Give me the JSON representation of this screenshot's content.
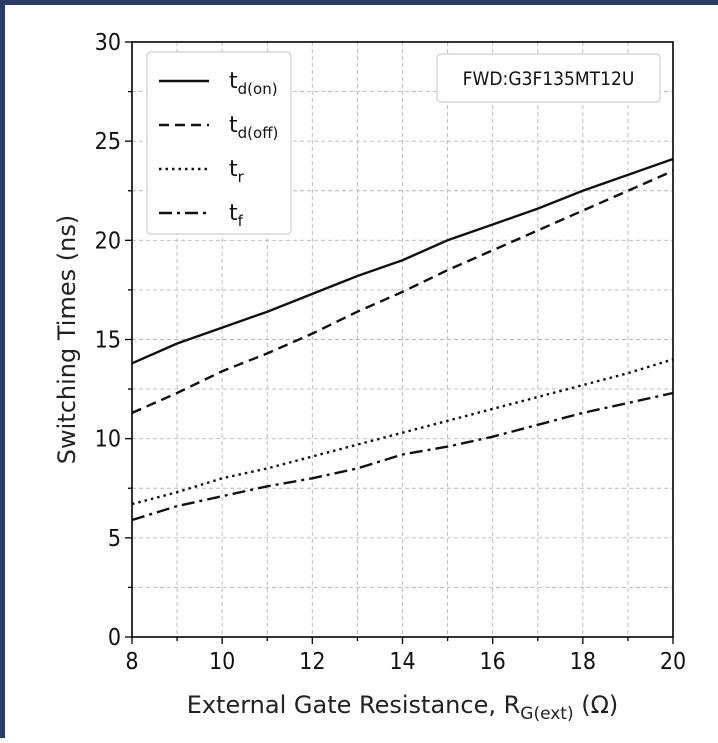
{
  "chart_data": {
    "type": "line",
    "xlabel_main": "External Gate Resistance, R",
    "xlabel_sub": "G(ext)",
    "xlabel_tail": " (Ω)",
    "ylabel": "Switching Times (ns)",
    "xlim": [
      8,
      20
    ],
    "ylim": [
      0,
      30
    ],
    "x_ticks": [
      8,
      10,
      12,
      14,
      16,
      18,
      20
    ],
    "y_ticks": [
      0,
      5,
      10,
      15,
      20,
      25,
      30
    ],
    "x_minor_step": 1,
    "y_minor_step": 2.5,
    "grid": true,
    "legend_position": "top-left",
    "annotation": "FWD:G3F135MT12U",
    "annotation_position": "top-right",
    "series": [
      {
        "name_main": "t",
        "name_sub": "d(on)",
        "style": "solid",
        "x": [
          8,
          9,
          10,
          11,
          12,
          13,
          14,
          15,
          16,
          17,
          18,
          19,
          20
        ],
        "y": [
          13.8,
          14.8,
          15.6,
          16.4,
          17.3,
          18.2,
          19.0,
          20.0,
          20.8,
          21.6,
          22.5,
          23.3,
          24.1
        ]
      },
      {
        "name_main": "t",
        "name_sub": "d(off)",
        "style": "dashed",
        "x": [
          8,
          9,
          10,
          11,
          12,
          13,
          14,
          15,
          16,
          17,
          18,
          19,
          20
        ],
        "y": [
          11.3,
          12.3,
          13.4,
          14.3,
          15.3,
          16.4,
          17.4,
          18.5,
          19.5,
          20.5,
          21.5,
          22.5,
          23.5
        ]
      },
      {
        "name_main": "t",
        "name_sub": "r",
        "style": "dotted",
        "x": [
          8,
          9,
          10,
          11,
          12,
          13,
          14,
          15,
          16,
          17,
          18,
          19,
          20
        ],
        "y": [
          6.7,
          7.3,
          8.0,
          8.5,
          9.1,
          9.7,
          10.3,
          10.9,
          11.5,
          12.1,
          12.7,
          13.3,
          14.0
        ]
      },
      {
        "name_main": "t",
        "name_sub": "f",
        "style": "dashdot",
        "x": [
          8,
          9,
          10,
          11,
          12,
          13,
          14,
          15,
          16,
          17,
          18,
          19,
          20
        ],
        "y": [
          5.9,
          6.6,
          7.1,
          7.6,
          8.0,
          8.5,
          9.2,
          9.6,
          10.1,
          10.7,
          11.3,
          11.8,
          12.3
        ]
      }
    ]
  }
}
